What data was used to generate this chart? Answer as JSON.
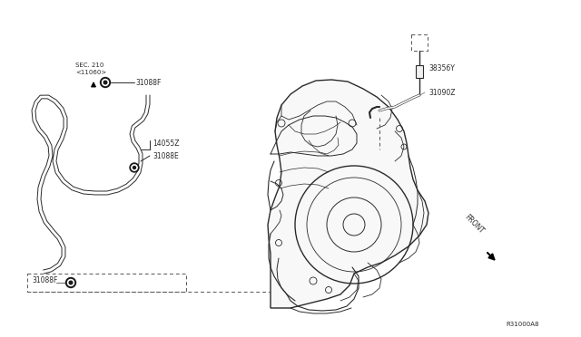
{
  "background_color": "#ffffff",
  "fig_width": 6.4,
  "fig_height": 3.72,
  "dpi": 100,
  "diagram_id": "R31000A8",
  "labels": {
    "sec_ref_1": "SEC. 210",
    "sec_ref_2": "<11060>",
    "part_31088F_top": "31088F",
    "part_14055Z": "14055Z",
    "part_31088E": "31088E",
    "part_31088F_bot": "31088F",
    "part_38356Y": "38356Y",
    "part_31090Z": "31090Z",
    "front_label": "FRONT"
  },
  "line_color": "#2a2a2a",
  "text_color": "#2a2a2a",
  "font_size": 5.5,
  "font_size_small": 5.0
}
